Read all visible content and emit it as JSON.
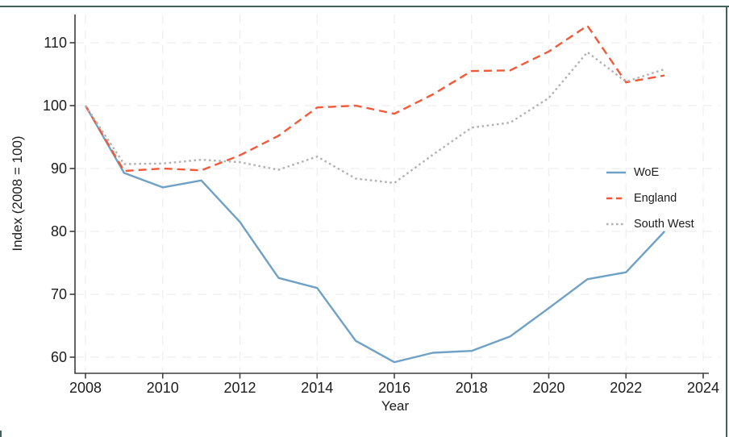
{
  "chart_data": {
    "type": "line",
    "title": "",
    "xlabel": "Year",
    "ylabel": "Index (2008 = 100)",
    "x": [
      2008,
      2009,
      2010,
      2011,
      2012,
      2013,
      2014,
      2015,
      2016,
      2017,
      2018,
      2019,
      2020,
      2021,
      2022,
      2023
    ],
    "series": [
      {
        "name": "WoE",
        "style": "solid",
        "color": "#6fa1c7",
        "values": [
          100,
          89.3,
          87.0,
          88.1,
          81.5,
          72.6,
          71.0,
          62.6,
          59.2,
          60.7,
          61.0,
          63.3,
          67.8,
          72.4,
          73.5,
          80.0
        ]
      },
      {
        "name": "England",
        "style": "dashed",
        "color": "#f2593a",
        "values": [
          100,
          89.6,
          90.0,
          89.7,
          92.1,
          95.2,
          99.7,
          100.0,
          98.7,
          101.8,
          105.5,
          105.6,
          108.6,
          112.7,
          103.7,
          104.8
        ]
      },
      {
        "name": "South West",
        "style": "dotted",
        "color": "#b2b2b4",
        "values": [
          100,
          90.7,
          90.8,
          91.4,
          91.0,
          89.8,
          91.9,
          88.4,
          87.7,
          92.2,
          96.5,
          97.3,
          101.2,
          108.5,
          103.8,
          105.8
        ]
      }
    ],
    "xticks": [
      2008,
      2010,
      2012,
      2014,
      2016,
      2018,
      2020,
      2022,
      2024
    ],
    "yticks": [
      60,
      70,
      80,
      90,
      100,
      110
    ],
    "xlim": [
      2008,
      2024.5
    ],
    "ylim": [
      57.5,
      114.5
    ],
    "grid": true,
    "legend_position": "inside-right"
  },
  "colors": {
    "frame": "#40605d",
    "axis": "#3e3e3e",
    "grid": "#eeeeee",
    "text": "#1c1c1c"
  }
}
